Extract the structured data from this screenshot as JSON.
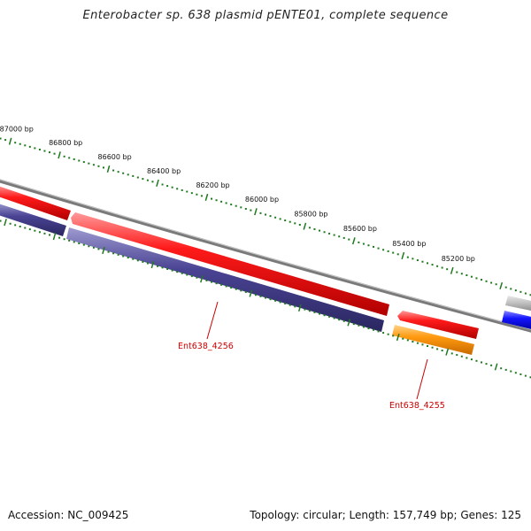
{
  "title": "Enterobacter sp. 638 plasmid pENTE01, complete sequence",
  "footer": {
    "accession": "Accession: NC_009425",
    "summary": "Topology: circular; Length: 157,749 bp; Genes: 125"
  },
  "scale": {
    "labels": [
      "87000 bp",
      "86800 bp",
      "86600 bp",
      "86400 bp",
      "86200 bp",
      "86000 bp",
      "85800 bp",
      "85600 bp",
      "85400 bp",
      "85200 bp"
    ]
  },
  "genes": [
    {
      "label": "Ent638_4256"
    },
    {
      "label": "Ent638_4255"
    }
  ],
  "colors": {
    "backbone": "#888888",
    "forward_gene": "#ee0000",
    "reverse_gene": "#3f3a82",
    "highlighted_gene": "#ff9900",
    "blue_gene": "#1010ee",
    "grey_gene": "#bbbbbb",
    "tick": "#1f7a1f",
    "label": "#cc0000"
  }
}
